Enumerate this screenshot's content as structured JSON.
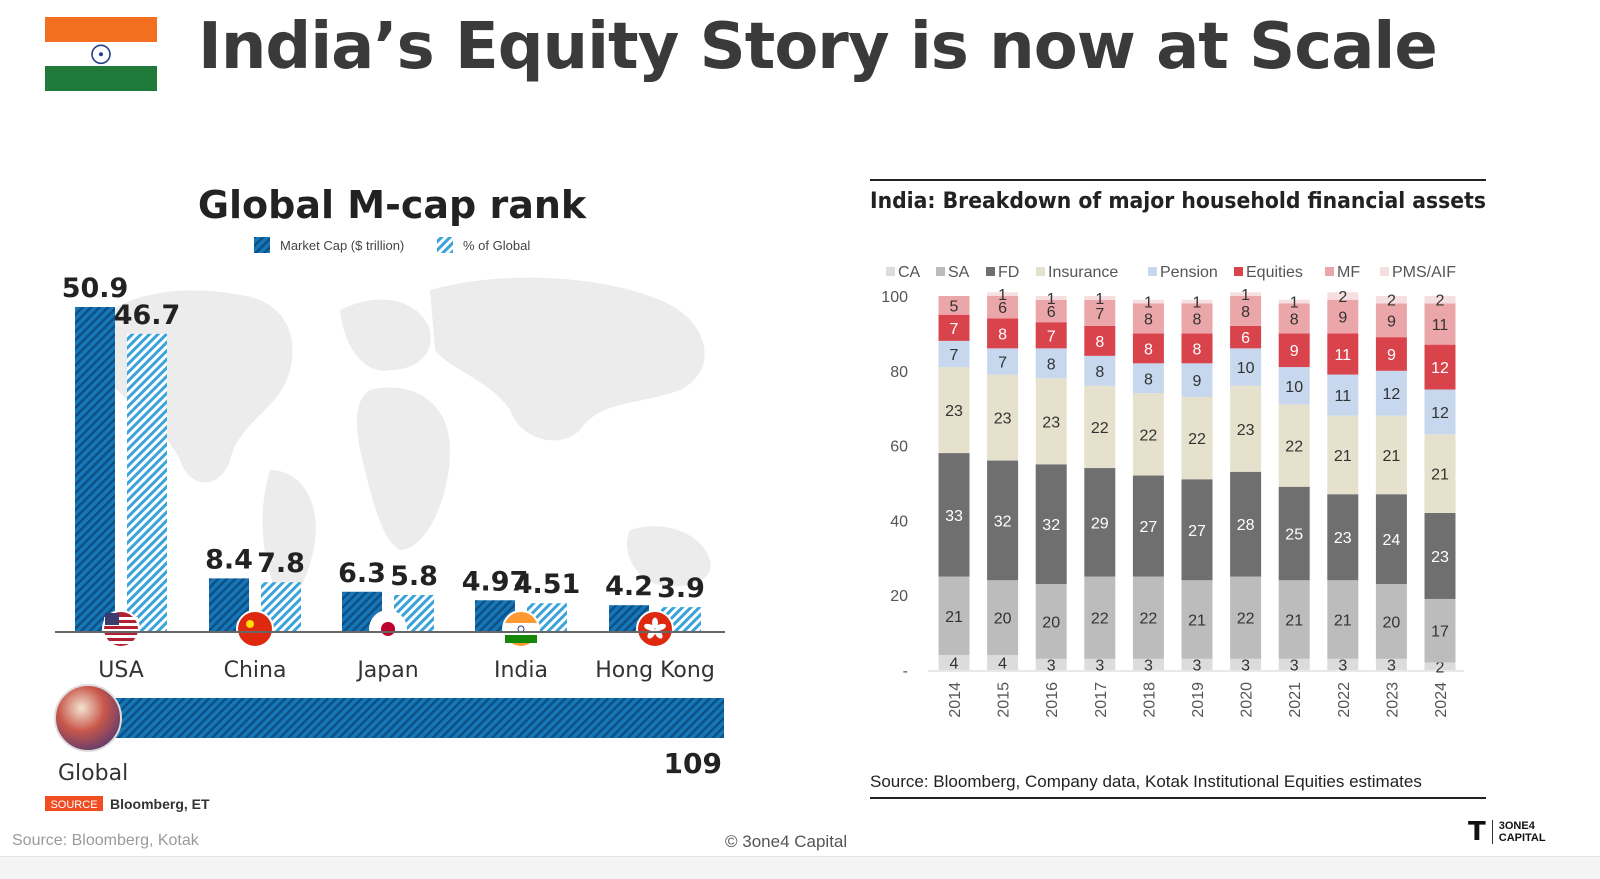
{
  "slide": {
    "title": "India’s Equity Story is now at Scale",
    "footer_source": "Source: Bloomberg, Kotak",
    "copyright": "© 3one4 Capital",
    "brand_line1": "3ONE4",
    "brand_line2": "CAPITAL",
    "colors": {
      "saffron": "#f26f21",
      "green": "#1f7a3a",
      "chakra": "#233e8b",
      "bar_blue": "#1676b8",
      "hatch_light": "#3aa3da"
    }
  },
  "chart_data": [
    {
      "type": "bar",
      "title": "Global M-cap rank",
      "legend": [
        "Market Cap ($ trillion)",
        "% of Global"
      ],
      "categories": [
        "USA",
        "China",
        "Japan",
        "India",
        "Hong Kong"
      ],
      "series": [
        {
          "name": "Market Cap ($ trillion)",
          "values": [
            50.9,
            8.4,
            6.3,
            4.97,
            4.2
          ]
        },
        {
          "name": "% of Global",
          "values": [
            46.7,
            7.8,
            5.8,
            4.51,
            3.9
          ]
        }
      ],
      "value_labels": [
        [
          "50.9",
          "46.7"
        ],
        [
          "8.4",
          "7.8"
        ],
        [
          "6.3",
          "5.8"
        ],
        [
          "4.97",
          "4.51"
        ],
        [
          "4.2",
          "3.9"
        ]
      ],
      "global_label": "Global",
      "global_value": 109,
      "global_value_label": "109",
      "source_tag": "SOURCE",
      "source_text": "Bloomberg, ET",
      "ylim": [
        0,
        55
      ]
    },
    {
      "type": "bar",
      "stacked": true,
      "title": "India: Breakdown of major household financial assets",
      "categories": [
        "2014",
        "2015",
        "2016",
        "2017",
        "2018",
        "2019",
        "2020",
        "2021",
        "2022",
        "2023",
        "2024"
      ],
      "y_ticks": [
        "-",
        "20",
        "40",
        "60",
        "80",
        "100"
      ],
      "ylim": [
        0,
        100
      ],
      "series": [
        {
          "name": "CA",
          "color": "#dcdcdc",
          "values": [
            4,
            4,
            3,
            3,
            3,
            3,
            3,
            3,
            3,
            3,
            2
          ]
        },
        {
          "name": "SA",
          "color": "#bcbcbc",
          "values": [
            21,
            20,
            20,
            22,
            22,
            21,
            22,
            21,
            21,
            20,
            17
          ]
        },
        {
          "name": "FD",
          "color": "#6f6f6f",
          "values": [
            33,
            32,
            32,
            29,
            27,
            27,
            28,
            25,
            23,
            24,
            23
          ]
        },
        {
          "name": "Insurance",
          "color": "#e5e1cc",
          "values": [
            23,
            23,
            23,
            22,
            22,
            22,
            23,
            22,
            21,
            21,
            21
          ]
        },
        {
          "name": "Pension",
          "color": "#c7d7ee",
          "values": [
            7,
            7,
            8,
            8,
            8,
            9,
            10,
            10,
            11,
            12,
            12
          ]
        },
        {
          "name": "Equities",
          "color": "#d9434b",
          "values": [
            7,
            8,
            7,
            8,
            8,
            8,
            6,
            9,
            11,
            9,
            12
          ]
        },
        {
          "name": "MF",
          "color": "#eba6aa",
          "values": [
            5,
            6,
            6,
            7,
            8,
            8,
            8,
            8,
            9,
            9,
            11
          ]
        },
        {
          "name": "PMS/AIF",
          "color": "#f6dfe0",
          "values": [
            0,
            1,
            1,
            1,
            1,
            1,
            1,
            1,
            2,
            2,
            2
          ]
        }
      ],
      "source": "Source: Bloomberg, Company data, Kotak Institutional Equities estimates"
    }
  ]
}
